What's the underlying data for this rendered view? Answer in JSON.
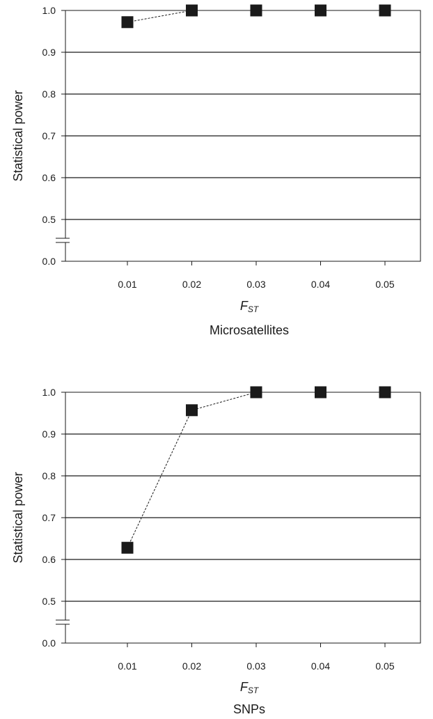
{
  "chart_data": [
    {
      "type": "line",
      "title": "Microsatellites",
      "xlabel_main": "F",
      "xlabel_sub": "ST",
      "ylabel": "Statistical power",
      "x": [
        0.01,
        0.02,
        0.03,
        0.04,
        0.05
      ],
      "x_tick_labels": [
        "0.01",
        "0.02",
        "0.03",
        "0.04",
        "0.05"
      ],
      "y_tick_labels": [
        "0.0",
        "0.5",
        "0.6",
        "0.7",
        "0.8",
        "0.9",
        "1.0"
      ],
      "y_ticks": [
        0.0,
        0.5,
        0.6,
        0.7,
        0.8,
        0.9,
        1.0
      ],
      "axis_break": [
        0.0,
        0.5
      ],
      "grid": true,
      "marker": "square",
      "line_style": "dashed",
      "series": [
        {
          "values": [
            0.972,
            1.0,
            1.0,
            1.0,
            1.0
          ]
        }
      ]
    },
    {
      "type": "line",
      "title": "SNPs",
      "xlabel_main": "F",
      "xlabel_sub": "ST",
      "ylabel": "Statistical power",
      "x": [
        0.01,
        0.02,
        0.03,
        0.04,
        0.05
      ],
      "x_tick_labels": [
        "0.01",
        "0.02",
        "0.03",
        "0.04",
        "0.05"
      ],
      "y_tick_labels": [
        "0.0",
        "0.5",
        "0.6",
        "0.7",
        "0.8",
        "0.9",
        "1.0"
      ],
      "y_ticks": [
        0.0,
        0.5,
        0.6,
        0.7,
        0.8,
        0.9,
        1.0
      ],
      "axis_break": [
        0.0,
        0.5
      ],
      "grid": true,
      "marker": "square",
      "line_style": "dashed",
      "series": [
        {
          "values": [
            0.628,
            0.957,
            1.0,
            1.0,
            1.0
          ]
        }
      ]
    }
  ],
  "colors": {
    "ink": "#1a1a1a",
    "marker": "#1a1a1a",
    "background": "#ffffff"
  }
}
